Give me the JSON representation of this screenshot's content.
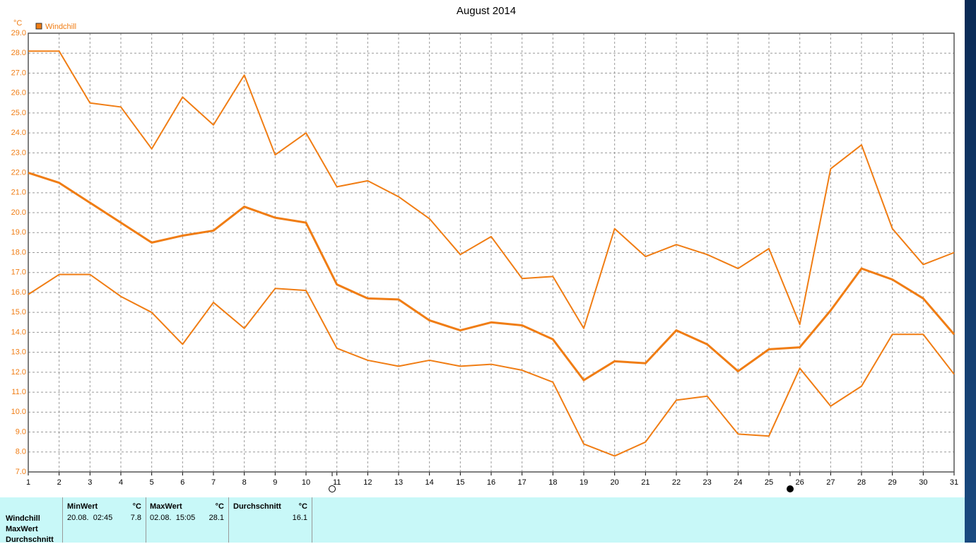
{
  "chart_data": {
    "type": "line",
    "title": "August 2014",
    "y_unit": "°C",
    "legend_label": "Windchill",
    "x": [
      1,
      2,
      3,
      4,
      5,
      6,
      7,
      8,
      9,
      10,
      11,
      12,
      13,
      14,
      15,
      16,
      17,
      18,
      19,
      20,
      21,
      22,
      23,
      24,
      25,
      26,
      27,
      28,
      29,
      30,
      31
    ],
    "xlim": [
      1,
      31
    ],
    "xticks": [
      1,
      2,
      3,
      4,
      5,
      6,
      7,
      8,
      9,
      10,
      11,
      12,
      13,
      14,
      15,
      16,
      17,
      18,
      19,
      20,
      21,
      22,
      23,
      24,
      25,
      26,
      27,
      28,
      29,
      30,
      31
    ],
    "ylim": [
      7,
      29
    ],
    "yticks": [
      {
        "value": 7,
        "label": "7.0"
      },
      {
        "value": 8,
        "label": "8.0"
      },
      {
        "value": 9,
        "label": "9.0"
      },
      {
        "value": 10,
        "label": "10.0"
      },
      {
        "value": 11,
        "label": "11.0"
      },
      {
        "value": 12,
        "label": "12.0"
      },
      {
        "value": 13,
        "label": "13.0"
      },
      {
        "value": 14,
        "label": "14.0"
      },
      {
        "value": 15,
        "label": "15.0"
      },
      {
        "value": 16,
        "label": "16.0"
      },
      {
        "value": 17,
        "label": "17.0"
      },
      {
        "value": 18,
        "label": "18.0"
      },
      {
        "value": 19,
        "label": "19.0"
      },
      {
        "value": 20,
        "label": "20.0"
      },
      {
        "value": 21,
        "label": "21.0"
      },
      {
        "value": 22,
        "label": "22.0"
      },
      {
        "value": 23,
        "label": "23.0"
      },
      {
        "value": 24,
        "label": "24.0"
      },
      {
        "value": 25,
        "label": "25.0"
      },
      {
        "value": 26,
        "label": "26.0"
      },
      {
        "value": 27,
        "label": "27.0"
      },
      {
        "value": 28,
        "label": "28.0"
      },
      {
        "value": 29,
        "label": "29.0"
      }
    ],
    "grid": true,
    "series": [
      {
        "color": "#f07d14",
        "width": 2,
        "values": [
          28.1,
          28.1,
          25.5,
          25.3,
          23.2,
          25.8,
          24.4,
          26.9,
          22.9,
          24.0,
          21.3,
          21.6,
          20.8,
          19.7,
          17.9,
          18.8,
          16.7,
          16.8,
          14.2,
          19.2,
          17.8,
          18.4,
          17.9,
          17.2,
          18.2,
          14.4,
          22.2,
          23.4,
          19.2,
          17.4,
          18.0
        ]
      },
      {
        "color": "#f07d14",
        "width": 3,
        "values": [
          22.0,
          21.5,
          20.5,
          19.5,
          18.5,
          18.85,
          19.1,
          20.3,
          19.75,
          19.5,
          16.4,
          15.7,
          15.65,
          14.6,
          14.1,
          14.5,
          14.35,
          13.65,
          11.6,
          12.55,
          12.45,
          14.1,
          13.4,
          12.05,
          13.15,
          13.25,
          15.1,
          17.2,
          16.65,
          15.7,
          13.9
        ]
      },
      {
        "color": "#f07d14",
        "width": 2,
        "values": [
          15.9,
          16.9,
          16.9,
          15.8,
          15.0,
          13.4,
          15.5,
          14.2,
          16.2,
          16.1,
          13.2,
          12.6,
          12.3,
          12.6,
          12.3,
          12.4,
          12.1,
          11.5,
          8.4,
          7.8,
          8.5,
          10.6,
          10.8,
          8.9,
          8.8,
          12.2,
          10.3,
          11.3,
          13.9,
          13.9,
          11.9
        ]
      }
    ]
  },
  "summary": {
    "row_labels": [
      "Windchill",
      "MaxWert",
      "Durchschnitt"
    ],
    "columns": [
      {
        "title": "MinWert",
        "unit": "°C",
        "time": "20.08.  02:45",
        "value": 7.8
      },
      {
        "title": "MaxWert",
        "unit": "°C",
        "time": "02.08.  15:05",
        "value": 28.1
      },
      {
        "title": "Durchschnitt",
        "unit": "°C",
        "value": 16.1
      }
    ]
  }
}
